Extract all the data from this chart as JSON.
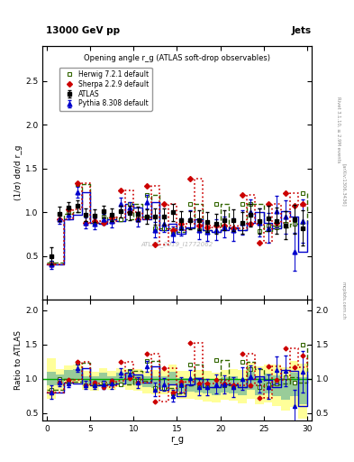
{
  "title_top": "13000 GeV pp",
  "title_right": "Jets",
  "plot_title": "Opening angle r_g (ATLAS soft-drop observables)",
  "ylabel_main": "(1/σ) dσ/d r_g",
  "ylabel_ratio": "Ratio to ATLAS",
  "xlabel": "r_g",
  "watermark": "ATLAS_2019_I1772062",
  "rivet_label": "Rivet 3.1.10, ≥ 2.9M events",
  "arxiv_label": "[arXiv:1306.3436]",
  "mcplots_label": "mcplots.cern.ch",
  "ylim_main": [
    0.0,
    2.9
  ],
  "ylim_ratio": [
    0.39,
    2.15
  ],
  "yticks_main": [
    0.5,
    1.0,
    1.5,
    2.0,
    2.5
  ],
  "yticks_ratio": [
    0.5,
    1.0,
    1.5,
    2.0
  ],
  "xlim": [
    -0.5,
    30.5
  ],
  "x_atlas": [
    0.5,
    1.5,
    2.5,
    3.5,
    4.5,
    5.5,
    6.5,
    7.5,
    8.5,
    9.5,
    10.5,
    11.5,
    12.5,
    13.5,
    14.5,
    15.5,
    16.5,
    17.5,
    18.5,
    19.5,
    20.5,
    21.5,
    22.5,
    23.5,
    24.5,
    25.5,
    26.5,
    27.5,
    28.5,
    29.5
  ],
  "y_atlas": [
    0.5,
    0.98,
    1.05,
    1.07,
    0.97,
    0.96,
    1.01,
    0.97,
    1.01,
    0.99,
    0.98,
    0.95,
    0.95,
    0.95,
    1.0,
    0.91,
    0.91,
    0.91,
    0.89,
    0.87,
    0.91,
    0.91,
    0.88,
    0.97,
    0.9,
    0.93,
    0.9,
    0.85,
    0.92,
    0.82
  ],
  "yerr_atlas": [
    0.1,
    0.08,
    0.07,
    0.07,
    0.07,
    0.07,
    0.07,
    0.07,
    0.07,
    0.08,
    0.08,
    0.08,
    0.09,
    0.09,
    0.1,
    0.1,
    0.1,
    0.11,
    0.11,
    0.11,
    0.11,
    0.12,
    0.12,
    0.13,
    0.14,
    0.14,
    0.15,
    0.16,
    0.17,
    0.2
  ],
  "x_herwig": [
    0.5,
    1.5,
    2.5,
    3.5,
    4.5,
    5.5,
    6.5,
    7.5,
    8.5,
    9.5,
    10.5,
    11.5,
    12.5,
    13.5,
    14.5,
    15.5,
    16.5,
    17.5,
    18.5,
    19.5,
    20.5,
    21.5,
    22.5,
    23.5,
    24.5,
    25.5,
    26.5,
    27.5,
    28.5,
    29.5
  ],
  "y_herwig": [
    0.42,
    0.98,
    1.0,
    1.32,
    0.88,
    0.88,
    0.95,
    0.9,
    0.92,
    1.1,
    0.95,
    1.2,
    0.82,
    0.82,
    0.78,
    0.82,
    1.1,
    0.8,
    0.78,
    1.1,
    0.82,
    0.8,
    1.1,
    1.1,
    0.79,
    0.85,
    0.83,
    0.87,
    0.87,
    1.22
  ],
  "x_pythia": [
    0.5,
    1.5,
    2.5,
    3.5,
    4.5,
    5.5,
    6.5,
    7.5,
    8.5,
    9.5,
    10.5,
    11.5,
    12.5,
    13.5,
    14.5,
    15.5,
    16.5,
    17.5,
    18.5,
    19.5,
    20.5,
    21.5,
    22.5,
    23.5,
    24.5,
    25.5,
    26.5,
    27.5,
    28.5,
    29.5
  ],
  "y_pythia": [
    0.4,
    0.92,
    0.97,
    1.23,
    0.88,
    0.87,
    0.92,
    0.9,
    1.1,
    1.05,
    0.92,
    1.12,
    0.8,
    0.87,
    0.75,
    0.83,
    0.92,
    0.8,
    0.78,
    0.8,
    0.83,
    0.8,
    0.88,
    1.0,
    0.88,
    0.82,
    1.01,
    0.95,
    0.55,
    0.9
  ],
  "yerr_pythia": [
    0.05,
    0.05,
    0.05,
    0.06,
    0.06,
    0.06,
    0.06,
    0.07,
    0.07,
    0.07,
    0.08,
    0.08,
    0.09,
    0.09,
    0.09,
    0.1,
    0.1,
    0.11,
    0.11,
    0.12,
    0.12,
    0.13,
    0.14,
    0.15,
    0.16,
    0.17,
    0.18,
    0.19,
    0.22,
    0.25
  ],
  "x_sherpa": [
    0.5,
    1.5,
    2.5,
    3.5,
    4.5,
    5.5,
    6.5,
    7.5,
    8.5,
    9.5,
    10.5,
    11.5,
    12.5,
    13.5,
    14.5,
    15.5,
    16.5,
    17.5,
    18.5,
    19.5,
    20.5,
    21.5,
    22.5,
    23.5,
    24.5,
    25.5,
    26.5,
    27.5,
    28.5,
    29.5
  ],
  "y_sherpa": [
    0.4,
    0.92,
    1.03,
    1.33,
    0.88,
    0.9,
    0.88,
    0.94,
    1.25,
    1.0,
    0.92,
    1.3,
    0.63,
    1.1,
    0.8,
    0.87,
    1.38,
    0.85,
    0.83,
    0.85,
    0.85,
    0.82,
    1.2,
    0.87,
    0.65,
    1.1,
    0.88,
    1.22,
    1.07,
    1.1
  ],
  "color_atlas": "#000000",
  "color_herwig": "#336600",
  "color_pythia": "#0000cc",
  "color_sherpa": "#cc0000",
  "band_yellow": "#ffff99",
  "band_green": "#99cc99",
  "atlas_sys_lo": [
    0.7,
    0.82,
    0.91,
    0.93,
    0.83,
    0.82,
    0.87,
    0.83,
    0.87,
    0.84,
    0.82,
    0.79,
    0.77,
    0.77,
    0.8,
    0.71,
    0.71,
    0.69,
    0.67,
    0.65,
    0.69,
    0.68,
    0.64,
    0.71,
    0.62,
    0.65,
    0.6,
    0.53,
    0.58,
    0.42
  ],
  "atlas_sys_hi": [
    1.3,
    1.14,
    1.19,
    1.21,
    1.11,
    1.1,
    1.15,
    1.11,
    1.15,
    1.14,
    1.14,
    1.11,
    1.13,
    1.13,
    1.2,
    1.11,
    1.11,
    1.13,
    1.11,
    1.09,
    1.13,
    1.14,
    1.12,
    1.23,
    1.18,
    1.21,
    1.2,
    1.17,
    1.26,
    1.22
  ],
  "atlas_stat_lo": [
    0.9,
    0.9,
    0.98,
    1.0,
    0.9,
    0.89,
    0.94,
    0.9,
    0.94,
    0.91,
    0.9,
    0.87,
    0.86,
    0.86,
    0.9,
    0.81,
    0.81,
    0.8,
    0.78,
    0.76,
    0.8,
    0.79,
    0.76,
    0.84,
    0.76,
    0.79,
    0.75,
    0.69,
    0.75,
    0.62
  ],
  "atlas_stat_hi": [
    1.1,
    1.06,
    1.12,
    1.14,
    1.04,
    1.03,
    1.08,
    1.04,
    1.08,
    1.07,
    1.06,
    1.03,
    1.04,
    1.04,
    1.1,
    1.01,
    1.01,
    1.02,
    1.0,
    0.98,
    1.02,
    1.03,
    1.0,
    1.1,
    1.04,
    1.07,
    1.05,
    1.01,
    1.09,
    1.02
  ]
}
